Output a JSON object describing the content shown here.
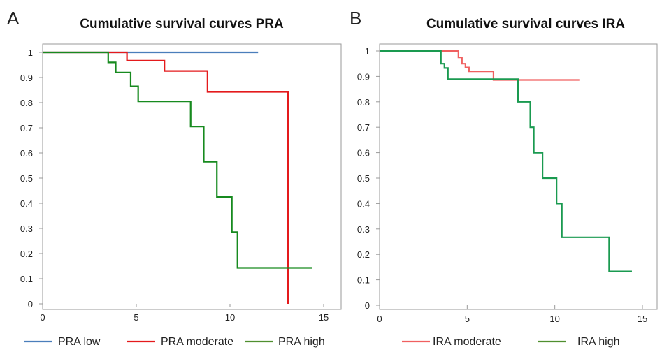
{
  "chart_data": [
    {
      "type": "line",
      "panel_label": "A",
      "title": "Cumulative survival curves PRA",
      "xlabel": "",
      "ylabel": "",
      "xlim": [
        0,
        15
      ],
      "ylim": [
        0,
        1
      ],
      "x_ticks": [
        "0",
        "5",
        "10",
        "15"
      ],
      "y_ticks": [
        "0",
        "0.1",
        "0.2",
        "0.3",
        "0.4",
        "0.5",
        "0.6",
        "0.7",
        "0.8",
        "0.9",
        "1"
      ],
      "x_tick_values": [
        0,
        5,
        10,
        15
      ],
      "y_tick_values": [
        0,
        0.1,
        0.2,
        0.3,
        0.4,
        0.5,
        0.6,
        0.7,
        0.8,
        0.9,
        1
      ],
      "grid": false,
      "legend_position": "bottom",
      "step": true,
      "series": [
        {
          "name": "PRA low",
          "color": "#4a7ebb",
          "x": [
            0,
            11.5
          ],
          "y": [
            1,
            1
          ]
        },
        {
          "name": "PRA moderate",
          "color": "#e41a1c",
          "x": [
            0,
            4.5,
            6.5,
            8.8,
            13.1,
            13.1
          ],
          "y": [
            1,
            0.967,
            0.926,
            0.843,
            0.843,
            0
          ]
        },
        {
          "name": "PRA high",
          "color": "#178a1f",
          "x": [
            0,
            3.5,
            3.9,
            4.7,
            5.1,
            7.9,
            8.6,
            9.3,
            10.1,
            10.4,
            14.4
          ],
          "y": [
            1,
            0.96,
            0.92,
            0.865,
            0.805,
            0.705,
            0.565,
            0.425,
            0.285,
            0.143,
            0.143
          ]
        }
      ]
    },
    {
      "type": "line",
      "panel_label": "B",
      "title": "Cumulative survival curves IRA",
      "xlabel": "",
      "ylabel": "",
      "xlim": [
        0,
        15
      ],
      "ylim": [
        0,
        1
      ],
      "x_ticks": [
        "0",
        "5",
        "10",
        "15"
      ],
      "y_ticks": [
        "0",
        "0.1",
        "0.2",
        "0.3",
        "0.4",
        "0.5",
        "0.6",
        "0.7",
        "0.8",
        "0.9",
        "1"
      ],
      "x_tick_values": [
        0,
        5,
        10,
        15
      ],
      "y_tick_values": [
        0,
        0.1,
        0.2,
        0.3,
        0.4,
        0.5,
        0.6,
        0.7,
        0.8,
        0.9,
        1
      ],
      "grid": false,
      "legend_position": "bottom",
      "step": true,
      "series": [
        {
          "name": "IRA moderate",
          "color": "#f06060",
          "x": [
            0,
            4.5,
            4.7,
            4.9,
            5.1,
            6.5,
            11.4
          ],
          "y": [
            1,
            0.975,
            0.95,
            0.935,
            0.92,
            0.886,
            0.886
          ]
        },
        {
          "name": "IRA high",
          "color": "#1a9a50",
          "x": [
            0,
            3.5,
            3.7,
            3.9,
            7.9,
            8.6,
            8.8,
            9.0,
            9.3,
            10.1,
            10.4,
            13.1,
            14.4
          ],
          "y": [
            1,
            0.95,
            0.933,
            0.889,
            0.8,
            0.7,
            0.6,
            0.6,
            0.5,
            0.4,
            0.267,
            0.133,
            0.133
          ]
        }
      ]
    }
  ]
}
